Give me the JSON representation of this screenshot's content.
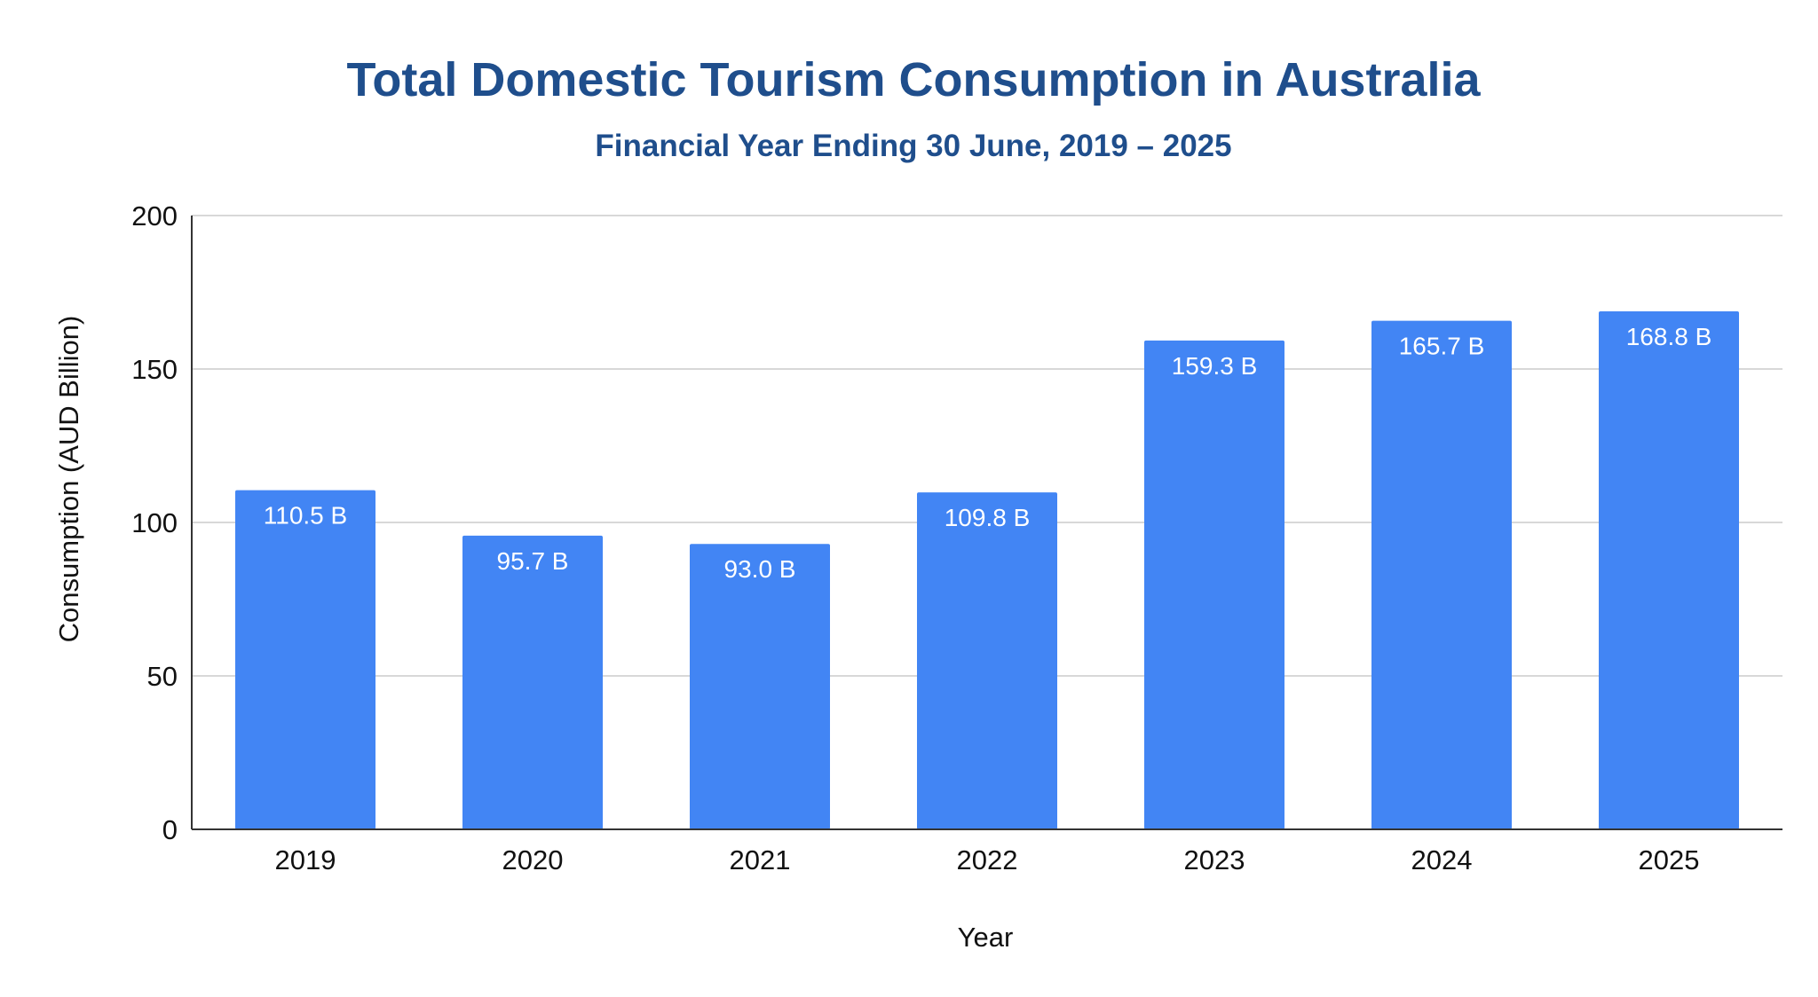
{
  "chart_data": {
    "type": "bar",
    "title": "Total Domestic Tourism Consumption in Australia",
    "subtitle": "Financial Year Ending 30 June, 2019 – 2025",
    "xlabel": "Year",
    "ylabel": "Consumption (AUD Billion)",
    "categories": [
      "2019",
      "2020",
      "2021",
      "2022",
      "2023",
      "2024",
      "2025"
    ],
    "values": [
      110.5,
      95.7,
      93.0,
      109.8,
      159.3,
      165.7,
      168.8
    ],
    "data_labels": [
      "110.5 B",
      "95.7 B",
      "93.0 B",
      "109.8 B",
      "159.3 B",
      "165.7 B",
      "168.8 B"
    ],
    "ylim": [
      0,
      200
    ],
    "yticks": [
      0,
      50,
      100,
      150,
      200
    ],
    "ytick_labels": [
      "0",
      "50",
      "100",
      "150",
      "200"
    ],
    "grid": true,
    "legend": "none",
    "colors": {
      "bar": "#4285f4",
      "title": "#1f4e8c",
      "gridline": "#cccccc",
      "axis": "#333333"
    }
  }
}
